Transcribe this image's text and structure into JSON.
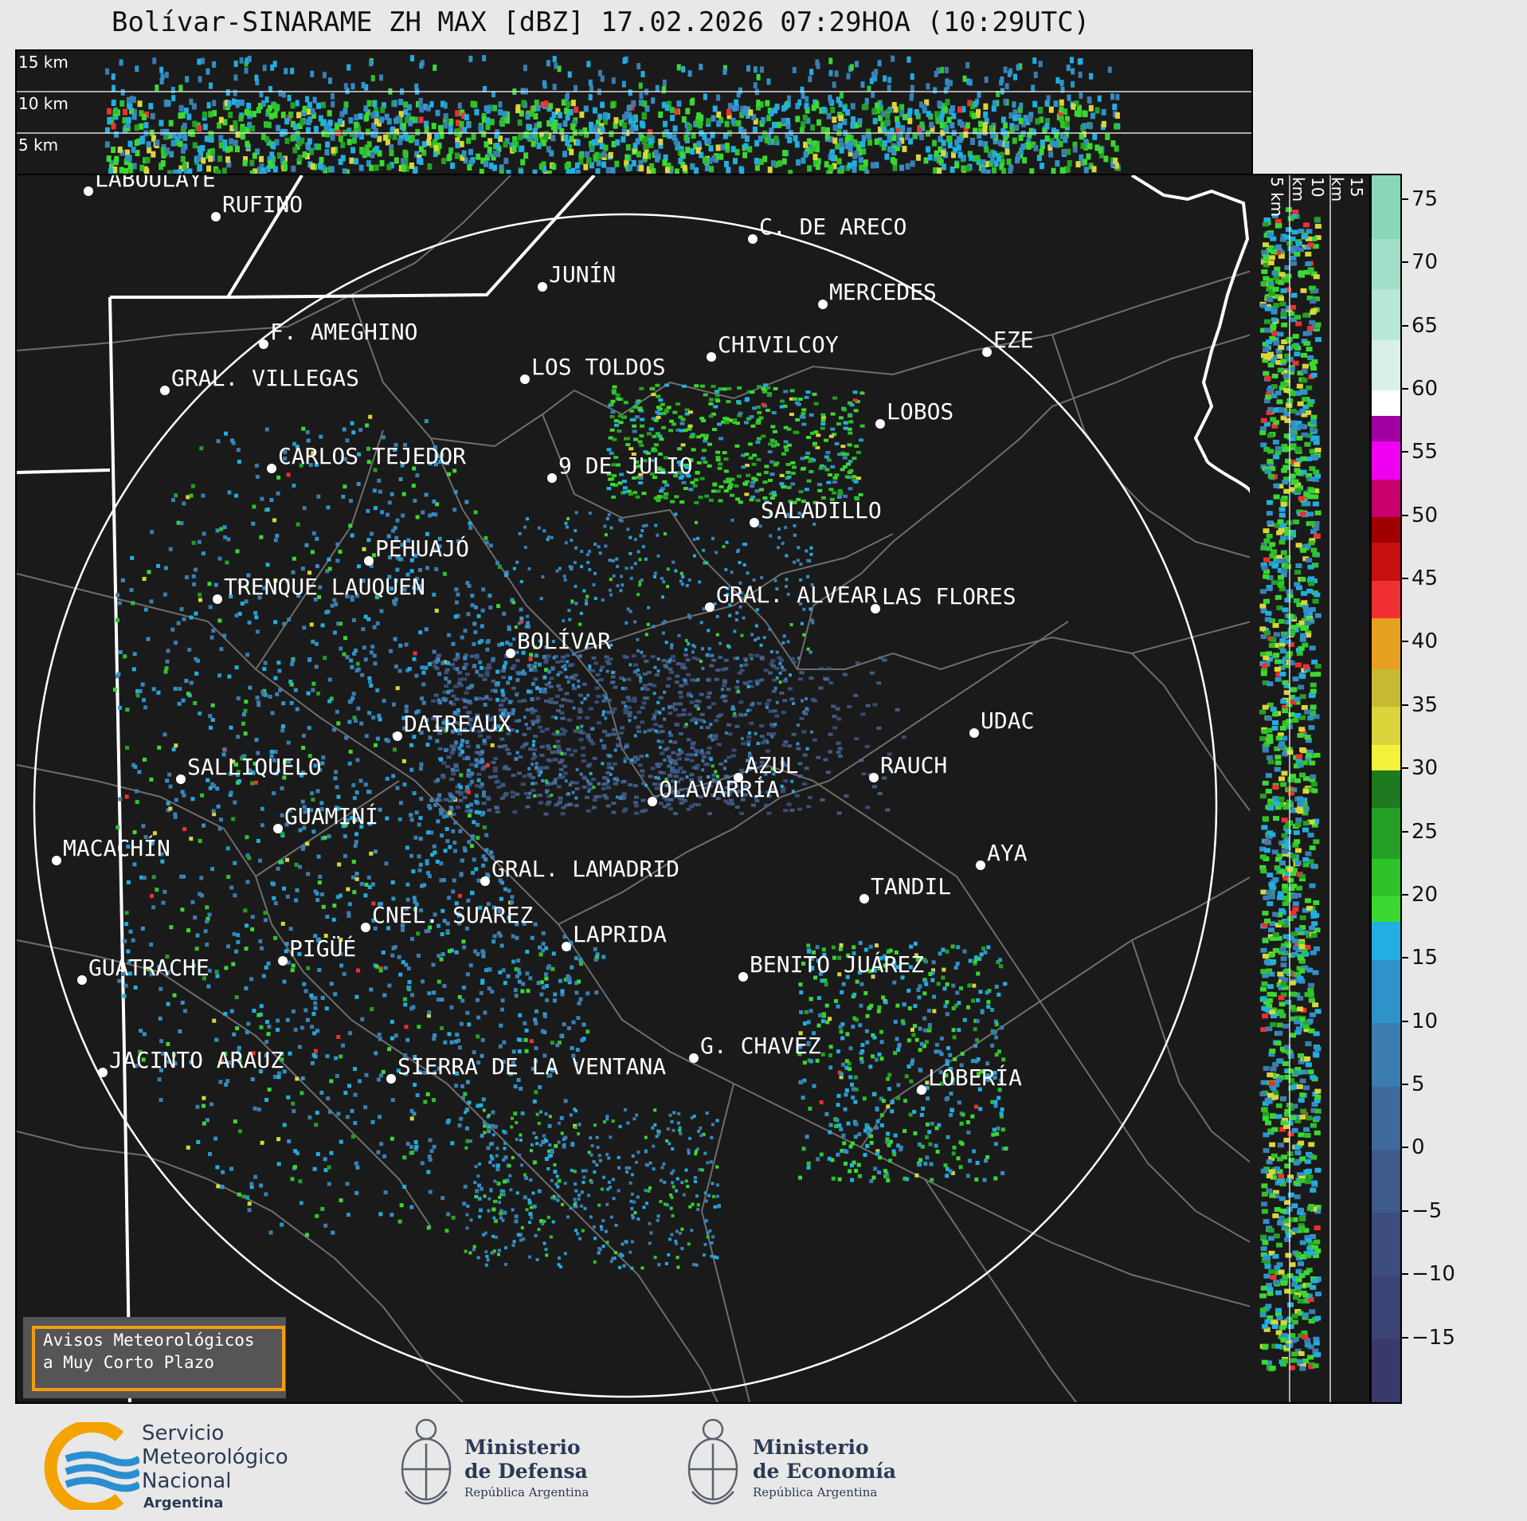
{
  "title": "Bolívar-SINARAME ZH MAX [dBZ] 17.02.2026 07:29HOA (10:29UTC)",
  "top_panel": {
    "altitudes": [
      "15 km",
      "10 km",
      "5 km"
    ]
  },
  "side_panel": {
    "altitudes": [
      "5 km",
      "10 km",
      "15 km"
    ]
  },
  "colorbar": {
    "min": -20,
    "max": 77,
    "ticks": [
      75,
      70,
      65,
      60,
      55,
      50,
      45,
      40,
      35,
      30,
      25,
      20,
      15,
      10,
      5,
      0,
      "−5",
      "−10",
      "−15"
    ],
    "segments": [
      {
        "from": -20,
        "to": -15,
        "color": "#3a3a6a"
      },
      {
        "from": -15,
        "to": -10,
        "color": "#3b4375"
      },
      {
        "from": -10,
        "to": -5,
        "color": "#3d4d80"
      },
      {
        "from": -5,
        "to": 0,
        "color": "#3f5a8c"
      },
      {
        "from": 0,
        "to": 5,
        "color": "#3f6a99"
      },
      {
        "from": 5,
        "to": 10,
        "color": "#3b7db0"
      },
      {
        "from": 10,
        "to": 15,
        "color": "#2f92c8"
      },
      {
        "from": 15,
        "to": 18,
        "color": "#22aee0"
      },
      {
        "from": 18,
        "to": 20,
        "color": "#3cd832"
      },
      {
        "from": 20,
        "to": 23,
        "color": "#2fc22a"
      },
      {
        "from": 23,
        "to": 27,
        "color": "#24a024"
      },
      {
        "from": 27,
        "to": 30,
        "color": "#1e7a1e"
      },
      {
        "from": 30,
        "to": 32,
        "color": "#f2f23a"
      },
      {
        "from": 32,
        "to": 35,
        "color": "#dad53a"
      },
      {
        "from": 35,
        "to": 38,
        "color": "#c8b832"
      },
      {
        "from": 38,
        "to": 42,
        "color": "#e8a020"
      },
      {
        "from": 42,
        "to": 45,
        "color": "#f03030"
      },
      {
        "from": 45,
        "to": 48,
        "color": "#c81010"
      },
      {
        "from": 48,
        "to": 50,
        "color": "#a00000"
      },
      {
        "from": 50,
        "to": 53,
        "color": "#c8006e"
      },
      {
        "from": 53,
        "to": 56,
        "color": "#f000f0"
      },
      {
        "from": 56,
        "to": 58,
        "color": "#a000a0"
      },
      {
        "from": 58,
        "to": 60,
        "color": "#ffffff"
      },
      {
        "from": 60,
        "to": 64,
        "color": "#d8f0e8"
      },
      {
        "from": 64,
        "to": 68,
        "color": "#b8e8d8"
      },
      {
        "from": 68,
        "to": 72,
        "color": "#a0e0c8"
      },
      {
        "from": 72,
        "to": 77,
        "color": "#88d8b8"
      }
    ]
  },
  "cities": [
    {
      "name": "LABOULAYE"
    },
    {
      "name": "RUFINO"
    },
    {
      "name": "C. DE ARECO"
    },
    {
      "name": "JUNÍN"
    },
    {
      "name": "MERCEDES"
    },
    {
      "name": "F. AMEGHINO"
    },
    {
      "name": "CHIVILCOY"
    },
    {
      "name": "EZE"
    },
    {
      "name": "GRAL. VILLEGAS"
    },
    {
      "name": "LOS TOLDOS"
    },
    {
      "name": "LOBOS"
    },
    {
      "name": "CARLOS TEJEDOR"
    },
    {
      "name": "9 DE JULIO"
    },
    {
      "name": "SALADILLO"
    },
    {
      "name": "PEHUAJÓ"
    },
    {
      "name": "TRENQUE LAUQUEN"
    },
    {
      "name": "GRAL. ALVEAR"
    },
    {
      "name": "LAS FLORES"
    },
    {
      "name": "BOLÍVAR"
    },
    {
      "name": "DAIREAUX"
    },
    {
      "name": "UDAC"
    },
    {
      "name": "AZUL"
    },
    {
      "name": "RAUCH"
    },
    {
      "name": "SALLIQUELO"
    },
    {
      "name": "OLAVARRÍA"
    },
    {
      "name": "GUAMINÍ"
    },
    {
      "name": "MACACHÍN"
    },
    {
      "name": "AYA"
    },
    {
      "name": "GRAL. LAMADRID"
    },
    {
      "name": "TANDIL"
    },
    {
      "name": "CNEL. SUAREZ"
    },
    {
      "name": "LAPRIDA"
    },
    {
      "name": "PIGÜÉ"
    },
    {
      "name": "GUATRACHE"
    },
    {
      "name": "BENITO JUÁREZ"
    },
    {
      "name": "G. CHAVEZ"
    },
    {
      "name": "JACINTO ARAUZ"
    },
    {
      "name": "SIERRA DE LA VENTANA"
    },
    {
      "name": "LOBERÍA"
    }
  ],
  "warning": {
    "line1": "Avisos Meteorológicos",
    "line2": "a Muy Corto Plazo"
  },
  "footer": {
    "smn": {
      "line1": "Servicio",
      "line2": "Meteorológico",
      "line3": "Nacional",
      "line4": "Argentina"
    },
    "defensa": {
      "line1": "Ministerio",
      "line2": "de Defensa",
      "line3": "República Argentina"
    },
    "economia": {
      "line1": "Ministerio",
      "line2": "de Economía",
      "line3": "República Argentina"
    },
    "colors": {
      "smn_orange": "#f5a300",
      "smn_blue": "#2a8fd0",
      "text_navy": "#2b3a55"
    }
  }
}
